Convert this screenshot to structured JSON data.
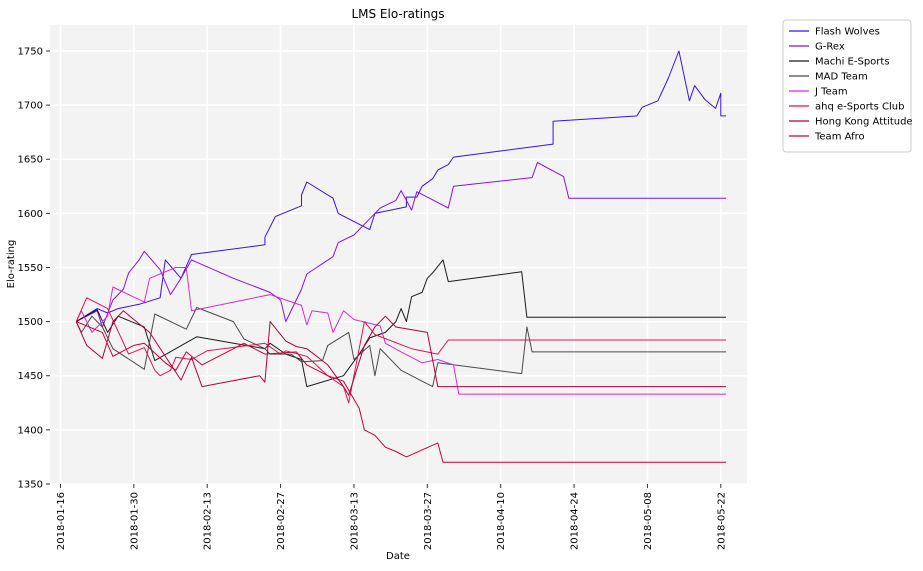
{
  "chart_data": {
    "type": "line",
    "title": "LMS Elo-ratings",
    "xlabel": "Date",
    "ylabel": "Elo-rating",
    "x_axis": {
      "kind": "date",
      "range": [
        "2018-01-14",
        "2018-05-27"
      ],
      "ticks": [
        "2018-01-16",
        "2018-01-30",
        "2018-02-13",
        "2018-02-27",
        "2018-03-13",
        "2018-03-27",
        "2018-04-10",
        "2018-04-24",
        "2018-05-08",
        "2018-05-22"
      ]
    },
    "y_axis": {
      "range": [
        1350,
        1774
      ],
      "ticks": [
        1350,
        1400,
        1450,
        1500,
        1550,
        1600,
        1650,
        1700,
        1750
      ]
    },
    "grid": true,
    "legend_placement": "outside top-right",
    "background_color": "#f3f3f3",
    "grid_color": "#ffffff",
    "series": [
      {
        "name": "Flash Wolves",
        "color": "#3a10e5",
        "points": [
          [
            "2018-01-19",
            1500
          ],
          [
            "2018-01-21",
            1506
          ],
          [
            "2018-01-23",
            1512
          ],
          [
            "2018-01-25",
            1508
          ],
          [
            "2018-01-27",
            1512
          ],
          [
            "2018-01-31",
            1516
          ],
          [
            "2018-02-04",
            1522
          ],
          [
            "2018-02-05",
            1557
          ],
          [
            "2018-02-08",
            1540
          ],
          [
            "2018-02-10",
            1562
          ],
          [
            "2018-02-24",
            1571
          ],
          [
            "2018-02-24",
            1578
          ],
          [
            "2018-02-26",
            1597
          ],
          [
            "2018-03-03",
            1607
          ],
          [
            "2018-03-03",
            1617
          ],
          [
            "2018-03-04",
            1629
          ],
          [
            "2018-03-09",
            1614
          ],
          [
            "2018-03-10",
            1600
          ],
          [
            "2018-03-16",
            1585
          ],
          [
            "2018-03-17",
            1600
          ],
          [
            "2018-03-23",
            1606
          ],
          [
            "2018-03-23",
            1615
          ],
          [
            "2018-03-25",
            1615
          ],
          [
            "2018-03-26",
            1625
          ],
          [
            "2018-03-28",
            1632
          ],
          [
            "2018-03-29",
            1640
          ],
          [
            "2018-03-31",
            1645
          ],
          [
            "2018-04-01",
            1652
          ],
          [
            "2018-04-20",
            1664
          ],
          [
            "2018-04-20",
            1685
          ],
          [
            "2018-05-06",
            1690
          ],
          [
            "2018-05-07",
            1698
          ],
          [
            "2018-05-10",
            1704
          ],
          [
            "2018-05-12",
            1725
          ],
          [
            "2018-05-14",
            1750
          ],
          [
            "2018-05-16",
            1704
          ],
          [
            "2018-05-17",
            1718
          ],
          [
            "2018-05-19",
            1705
          ],
          [
            "2018-05-21",
            1697
          ],
          [
            "2018-05-22",
            1711
          ],
          [
            "2018-05-22",
            1690
          ],
          [
            "2018-05-23",
            1690
          ]
        ]
      },
      {
        "name": "G-Rex",
        "color": "#8c10e6",
        "points": [
          [
            "2018-01-19",
            1500
          ],
          [
            "2018-01-23",
            1510
          ],
          [
            "2018-01-24",
            1495
          ],
          [
            "2018-01-26",
            1520
          ],
          [
            "2018-01-28",
            1530
          ],
          [
            "2018-01-29",
            1545
          ],
          [
            "2018-01-31",
            1557
          ],
          [
            "2018-02-01",
            1565
          ],
          [
            "2018-02-04",
            1548
          ],
          [
            "2018-02-06",
            1525
          ],
          [
            "2018-02-08",
            1540
          ],
          [
            "2018-02-10",
            1557
          ],
          [
            "2018-02-18",
            1540
          ],
          [
            "2018-02-25",
            1527
          ],
          [
            "2018-02-27",
            1520
          ],
          [
            "2018-02-28",
            1500
          ],
          [
            "2018-03-03",
            1530
          ],
          [
            "2018-03-04",
            1544
          ],
          [
            "2018-03-09",
            1560
          ],
          [
            "2018-03-10",
            1573
          ],
          [
            "2018-03-13",
            1580
          ],
          [
            "2018-03-16",
            1595
          ],
          [
            "2018-03-18",
            1605
          ],
          [
            "2018-03-21",
            1612
          ],
          [
            "2018-03-22",
            1621
          ],
          [
            "2018-03-24",
            1603
          ],
          [
            "2018-03-25",
            1620
          ],
          [
            "2018-03-27",
            1615
          ],
          [
            "2018-03-31",
            1605
          ],
          [
            "2018-04-01",
            1625
          ],
          [
            "2018-04-16",
            1633
          ],
          [
            "2018-04-17",
            1647
          ],
          [
            "2018-04-22",
            1634
          ],
          [
            "2018-04-23",
            1614
          ],
          [
            "2018-05-23",
            1614
          ]
        ]
      },
      {
        "name": "Machi E-Sports",
        "color": "#1a1a1a",
        "points": [
          [
            "2018-01-19",
            1500
          ],
          [
            "2018-01-23",
            1511
          ],
          [
            "2018-01-25",
            1490
          ],
          [
            "2018-01-27",
            1505
          ],
          [
            "2018-02-01",
            1495
          ],
          [
            "2018-02-03",
            1464
          ],
          [
            "2018-02-11",
            1486
          ],
          [
            "2018-02-24",
            1475
          ],
          [
            "2018-02-25",
            1480
          ],
          [
            "2018-02-28",
            1470
          ],
          [
            "2018-03-03",
            1465
          ],
          [
            "2018-03-04",
            1440
          ],
          [
            "2018-03-11",
            1450
          ],
          [
            "2018-03-14",
            1470
          ],
          [
            "2018-03-16",
            1485
          ],
          [
            "2018-03-19",
            1490
          ],
          [
            "2018-03-21",
            1500
          ],
          [
            "2018-03-22",
            1512
          ],
          [
            "2018-03-23",
            1500
          ],
          [
            "2018-03-24",
            1523
          ],
          [
            "2018-03-26",
            1527
          ],
          [
            "2018-03-27",
            1540
          ],
          [
            "2018-03-28",
            1545
          ],
          [
            "2018-03-30",
            1557
          ],
          [
            "2018-03-31",
            1537
          ],
          [
            "2018-04-14",
            1546
          ],
          [
            "2018-04-15",
            1504
          ],
          [
            "2018-05-23",
            1504
          ]
        ]
      },
      {
        "name": "MAD Team",
        "color": "#4a4a4a",
        "points": [
          [
            "2018-01-19",
            1500
          ],
          [
            "2018-01-20",
            1490
          ],
          [
            "2018-01-22",
            1505
          ],
          [
            "2018-01-24",
            1495
          ],
          [
            "2018-01-26",
            1475
          ],
          [
            "2018-02-01",
            1456
          ],
          [
            "2018-02-03",
            1507
          ],
          [
            "2018-02-09",
            1493
          ],
          [
            "2018-02-11",
            1513
          ],
          [
            "2018-02-18",
            1500
          ],
          [
            "2018-02-20",
            1484
          ],
          [
            "2018-02-24",
            1475
          ],
          [
            "2018-02-25",
            1470
          ],
          [
            "2018-03-01",
            1470
          ],
          [
            "2018-03-03",
            1463
          ],
          [
            "2018-03-07",
            1464
          ],
          [
            "2018-03-08",
            1478
          ],
          [
            "2018-03-12",
            1490
          ],
          [
            "2018-03-13",
            1465
          ],
          [
            "2018-03-16",
            1478
          ],
          [
            "2018-03-17",
            1450
          ],
          [
            "2018-03-18",
            1475
          ],
          [
            "2018-03-22",
            1455
          ],
          [
            "2018-03-28",
            1440
          ],
          [
            "2018-03-29",
            1462
          ],
          [
            "2018-04-14",
            1452
          ],
          [
            "2018-04-15",
            1495
          ],
          [
            "2018-04-16",
            1472
          ],
          [
            "2018-05-23",
            1472
          ]
        ]
      },
      {
        "name": "J Team",
        "color": "#d42fcf",
        "points": [
          [
            "2018-01-19",
            1500
          ],
          [
            "2018-01-20",
            1510
          ],
          [
            "2018-01-22",
            1490
          ],
          [
            "2018-01-25",
            1505
          ],
          [
            "2018-01-26",
            1532
          ],
          [
            "2018-02-01",
            1518
          ],
          [
            "2018-02-02",
            1540
          ],
          [
            "2018-02-07",
            1550
          ],
          [
            "2018-02-09",
            1550
          ],
          [
            "2018-02-10",
            1510
          ],
          [
            "2018-02-20",
            1520
          ],
          [
            "2018-02-25",
            1525
          ],
          [
            "2018-03-03",
            1515
          ],
          [
            "2018-03-04",
            1497
          ],
          [
            "2018-03-05",
            1510
          ],
          [
            "2018-03-08",
            1508
          ],
          [
            "2018-03-09",
            1490
          ],
          [
            "2018-03-11",
            1510
          ],
          [
            "2018-03-13",
            1502
          ],
          [
            "2018-03-18",
            1496
          ],
          [
            "2018-03-19",
            1480
          ],
          [
            "2018-03-22",
            1472
          ],
          [
            "2018-03-26",
            1462
          ],
          [
            "2018-03-29",
            1465
          ],
          [
            "2018-04-01",
            1460
          ],
          [
            "2018-04-02",
            1433
          ],
          [
            "2018-05-23",
            1433
          ]
        ]
      },
      {
        "name": "ahq e-Sports Club",
        "color": "#e0144d",
        "points": [
          [
            "2018-01-19",
            1500
          ],
          [
            "2018-01-21",
            1522
          ],
          [
            "2018-01-25",
            1512
          ],
          [
            "2018-01-29",
            1470
          ],
          [
            "2018-02-01",
            1476
          ],
          [
            "2018-02-03",
            1455
          ],
          [
            "2018-02-04",
            1450
          ],
          [
            "2018-02-06",
            1455
          ],
          [
            "2018-02-07",
            1467
          ],
          [
            "2018-02-10",
            1465
          ],
          [
            "2018-02-13",
            1473
          ],
          [
            "2018-02-24",
            1480
          ],
          [
            "2018-02-27",
            1470
          ],
          [
            "2018-02-28",
            1473
          ],
          [
            "2018-03-04",
            1468
          ],
          [
            "2018-03-08",
            1450
          ],
          [
            "2018-03-11",
            1440
          ],
          [
            "2018-03-12",
            1425
          ],
          [
            "2018-03-15",
            1500
          ],
          [
            "2018-03-17",
            1488
          ],
          [
            "2018-03-24",
            1475
          ],
          [
            "2018-03-29",
            1470
          ],
          [
            "2018-03-31",
            1483
          ],
          [
            "2018-05-23",
            1483
          ]
        ]
      },
      {
        "name": "Hong Kong Attitude",
        "color": "#b3003e",
        "points": [
          [
            "2018-01-19",
            1500
          ],
          [
            "2018-01-21",
            1478
          ],
          [
            "2018-01-24",
            1466
          ],
          [
            "2018-01-26",
            1500
          ],
          [
            "2018-01-28",
            1510
          ],
          [
            "2018-01-30",
            1502
          ],
          [
            "2018-02-02",
            1490
          ],
          [
            "2018-02-08",
            1446
          ],
          [
            "2018-02-10",
            1467
          ],
          [
            "2018-02-12",
            1440
          ],
          [
            "2018-02-23",
            1450
          ],
          [
            "2018-02-24",
            1444
          ],
          [
            "2018-02-25",
            1500
          ],
          [
            "2018-02-28",
            1482
          ],
          [
            "2018-03-02",
            1477
          ],
          [
            "2018-03-04",
            1475
          ],
          [
            "2018-03-08",
            1460
          ],
          [
            "2018-03-11",
            1440
          ],
          [
            "2018-03-12",
            1432
          ],
          [
            "2018-03-15",
            1478
          ],
          [
            "2018-03-17",
            1495
          ],
          [
            "2018-03-19",
            1505
          ],
          [
            "2018-03-21",
            1495
          ],
          [
            "2018-03-27",
            1490
          ],
          [
            "2018-03-29",
            1440
          ],
          [
            "2018-05-23",
            1440
          ]
        ]
      },
      {
        "name": "Team Afro",
        "color": "#cc0033",
        "points": [
          [
            "2018-01-19",
            1500
          ],
          [
            "2018-01-24",
            1490
          ],
          [
            "2018-01-26",
            1468
          ],
          [
            "2018-01-30",
            1478
          ],
          [
            "2018-02-01",
            1480
          ],
          [
            "2018-02-05",
            1462
          ],
          [
            "2018-02-07",
            1455
          ],
          [
            "2018-02-09",
            1472
          ],
          [
            "2018-02-12",
            1460
          ],
          [
            "2018-02-20",
            1480
          ],
          [
            "2018-02-22",
            1475
          ],
          [
            "2018-02-24",
            1470
          ],
          [
            "2018-03-02",
            1472
          ],
          [
            "2018-03-04",
            1460
          ],
          [
            "2018-03-08",
            1450
          ],
          [
            "2018-03-11",
            1445
          ],
          [
            "2018-03-14",
            1420
          ],
          [
            "2018-03-15",
            1400
          ],
          [
            "2018-03-17",
            1395
          ],
          [
            "2018-03-19",
            1384
          ],
          [
            "2018-03-21",
            1380
          ],
          [
            "2018-03-23",
            1375
          ],
          [
            "2018-03-29",
            1388
          ],
          [
            "2018-03-30",
            1370
          ],
          [
            "2018-05-23",
            1370
          ]
        ]
      }
    ]
  }
}
